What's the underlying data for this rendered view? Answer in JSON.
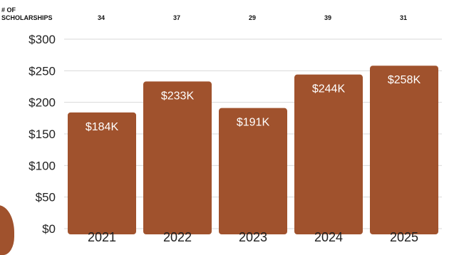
{
  "colors": {
    "bar": "#a0522d",
    "blob": "#a0522d",
    "grid": "#d9d9d9",
    "label": "#ffffff",
    "axis_text": "#222222"
  },
  "count_header": {
    "line1": "# OF",
    "line2": "SCHOLARSHIPS"
  },
  "scholarship_counts": [
    34,
    37,
    29,
    39,
    31
  ],
  "chart_data": {
    "type": "bar",
    "categories": [
      "2021",
      "2022",
      "2023",
      "2024",
      "2025"
    ],
    "values": [
      184,
      233,
      191,
      244,
      258
    ],
    "data_labels": [
      "$184K",
      "$233K",
      "$191K",
      "$244K",
      "$258K"
    ],
    "y_ticks": [
      "$0",
      "$50",
      "$100",
      "$150",
      "$200",
      "$250",
      "$300"
    ],
    "y_tick_values": [
      0,
      50,
      100,
      150,
      200,
      250,
      300
    ],
    "ylim": [
      0,
      300
    ],
    "grid": true,
    "title": "",
    "xlabel": "",
    "ylabel": ""
  }
}
